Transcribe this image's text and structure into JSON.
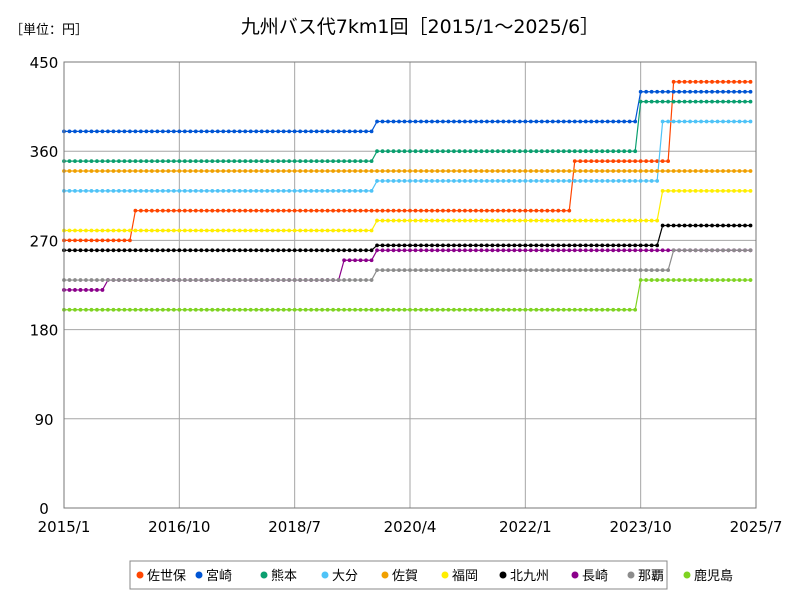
{
  "unit_label": "［単位：円］",
  "chart_data": {
    "type": "line",
    "title": "九州バス代7km1回［2015/1～2025/6］",
    "xlabel": "",
    "ylabel": "",
    "ylim": [
      0,
      450
    ],
    "y_ticks": [
      0,
      90,
      180,
      270,
      360,
      450
    ],
    "x_ticks": [
      "2015/1",
      "2016/10",
      "2018/7",
      "2020/4",
      "2022/1",
      "2023/10",
      "2025/7"
    ],
    "x_range": [
      "2015/1",
      "2025/7"
    ],
    "grid": true,
    "legend_position": "bottom",
    "series": [
      {
        "name": "佐世保",
        "color": "#ff4500",
        "steps": [
          [
            "2015/1",
            270
          ],
          [
            "2016/2",
            300
          ],
          [
            "2022/10",
            350
          ],
          [
            "2024/4",
            430
          ]
        ]
      },
      {
        "name": "宮崎",
        "color": "#0055d4",
        "steps": [
          [
            "2015/1",
            380
          ],
          [
            "2019/10",
            390
          ],
          [
            "2023/10",
            420
          ]
        ]
      },
      {
        "name": "熊本",
        "color": "#0a9f6f",
        "steps": [
          [
            "2015/1",
            350
          ],
          [
            "2019/10",
            360
          ],
          [
            "2023/10",
            410
          ]
        ]
      },
      {
        "name": "大分",
        "color": "#4fc3f7",
        "steps": [
          [
            "2015/1",
            320
          ],
          [
            "2019/10",
            330
          ],
          [
            "2024/2",
            390
          ]
        ]
      },
      {
        "name": "佐賀",
        "color": "#f0a000",
        "steps": [
          [
            "2015/1",
            340
          ]
        ]
      },
      {
        "name": "福岡",
        "color": "#ffee00",
        "steps": [
          [
            "2015/1",
            280
          ],
          [
            "2019/10",
            290
          ],
          [
            "2024/2",
            320
          ]
        ]
      },
      {
        "name": "北九州",
        "color": "#000000",
        "steps": [
          [
            "2015/1",
            260
          ],
          [
            "2019/10",
            265
          ],
          [
            "2024/2",
            285
          ]
        ]
      },
      {
        "name": "長崎",
        "color": "#8b008b",
        "steps": [
          [
            "2015/1",
            220
          ],
          [
            "2015/9",
            230
          ],
          [
            "2019/4",
            250
          ],
          [
            "2019/10",
            260
          ]
        ]
      },
      {
        "name": "那覇",
        "color": "#8c8c8c",
        "steps": [
          [
            "2015/1",
            230
          ],
          [
            "2019/10",
            240
          ],
          [
            "2024/4",
            260
          ]
        ]
      },
      {
        "name": "鹿児島",
        "color": "#7ed321",
        "steps": [
          [
            "2015/1",
            200
          ],
          [
            "2023/10",
            230
          ]
        ]
      }
    ]
  }
}
